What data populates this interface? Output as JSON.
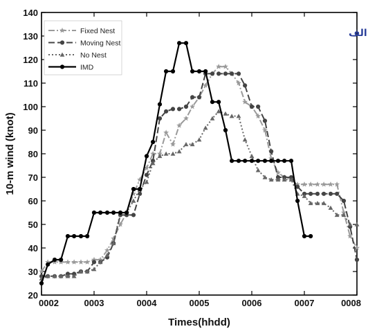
{
  "chart_data": {
    "type": "line",
    "xlabel": "Times(hhdd)",
    "ylabel": "10-m wind (knot)",
    "annotation": "الف",
    "xlim": [
      2,
      8
    ],
    "ylim": [
      20,
      140
    ],
    "xticks": [
      {
        "value": 2,
        "label": "0002"
      },
      {
        "value": 3,
        "label": "0003"
      },
      {
        "value": 4,
        "label": "0004"
      },
      {
        "value": 5,
        "label": "0005"
      },
      {
        "value": 6,
        "label": "0006"
      },
      {
        "value": 7,
        "label": "0007"
      },
      {
        "value": 8,
        "label": "0008"
      }
    ],
    "yticks": [
      20,
      30,
      40,
      50,
      60,
      70,
      80,
      90,
      100,
      110,
      120,
      130,
      140
    ],
    "legend_position": "top-left",
    "series": [
      {
        "name": "Fixed Nest",
        "color": "#9a9a9a",
        "dash": "9,3,2,3",
        "marker": "star",
        "width": 2,
        "points": [
          [
            2.0,
            30
          ],
          [
            2.12,
            34
          ],
          [
            2.25,
            34
          ],
          [
            2.37,
            34
          ],
          [
            2.5,
            34
          ],
          [
            2.62,
            34
          ],
          [
            2.75,
            34
          ],
          [
            2.87,
            34
          ],
          [
            3.0,
            35
          ],
          [
            3.12,
            35
          ],
          [
            3.25,
            39
          ],
          [
            3.37,
            44
          ],
          [
            3.5,
            50
          ],
          [
            3.62,
            55
          ],
          [
            3.75,
            63
          ],
          [
            3.87,
            69
          ],
          [
            4.0,
            74
          ],
          [
            4.12,
            80
          ],
          [
            4.25,
            80
          ],
          [
            4.37,
            89
          ],
          [
            4.5,
            84
          ],
          [
            4.62,
            92
          ],
          [
            4.75,
            95
          ],
          [
            4.87,
            100
          ],
          [
            5.0,
            104
          ],
          [
            5.12,
            109
          ],
          [
            5.25,
            114
          ],
          [
            5.37,
            117
          ],
          [
            5.5,
            117
          ],
          [
            5.62,
            114
          ],
          [
            5.75,
            110
          ],
          [
            5.87,
            102
          ],
          [
            6.0,
            100
          ],
          [
            6.12,
            96
          ],
          [
            6.25,
            90
          ],
          [
            6.37,
            78
          ],
          [
            6.5,
            72
          ],
          [
            6.62,
            70
          ],
          [
            6.75,
            69
          ],
          [
            6.87,
            67
          ],
          [
            7.0,
            67
          ],
          [
            7.12,
            67
          ],
          [
            7.25,
            67
          ],
          [
            7.37,
            67
          ],
          [
            7.5,
            67
          ],
          [
            7.62,
            67
          ],
          [
            7.75,
            55
          ],
          [
            7.87,
            45
          ],
          [
            8.0,
            40
          ]
        ]
      },
      {
        "name": "Moving Nest",
        "color": "#444444",
        "dash": "9,4",
        "marker": "circle",
        "width": 2,
        "points": [
          [
            2.0,
            28
          ],
          [
            2.12,
            28
          ],
          [
            2.25,
            28
          ],
          [
            2.37,
            28
          ],
          [
            2.5,
            29
          ],
          [
            2.62,
            29
          ],
          [
            2.75,
            30
          ],
          [
            2.87,
            30
          ],
          [
            3.0,
            34
          ],
          [
            3.12,
            34
          ],
          [
            3.25,
            36
          ],
          [
            3.37,
            42
          ],
          [
            3.5,
            54
          ],
          [
            3.62,
            54
          ],
          [
            3.75,
            54
          ],
          [
            3.87,
            63
          ],
          [
            4.0,
            71
          ],
          [
            4.12,
            77
          ],
          [
            4.25,
            95
          ],
          [
            4.37,
            98
          ],
          [
            4.5,
            99
          ],
          [
            4.62,
            99
          ],
          [
            4.75,
            100
          ],
          [
            4.87,
            104
          ],
          [
            5.0,
            104
          ],
          [
            5.12,
            114
          ],
          [
            5.25,
            114
          ],
          [
            5.37,
            114
          ],
          [
            5.5,
            114
          ],
          [
            5.62,
            114
          ],
          [
            5.75,
            114
          ],
          [
            5.87,
            109
          ],
          [
            6.0,
            100
          ],
          [
            6.12,
            100
          ],
          [
            6.25,
            94
          ],
          [
            6.37,
            81
          ],
          [
            6.5,
            70
          ],
          [
            6.62,
            70
          ],
          [
            6.75,
            70
          ],
          [
            6.87,
            66
          ],
          [
            7.0,
            63
          ],
          [
            7.12,
            63
          ],
          [
            7.25,
            63
          ],
          [
            7.37,
            63
          ],
          [
            7.5,
            63
          ],
          [
            7.62,
            63
          ],
          [
            7.75,
            60
          ],
          [
            7.87,
            49
          ],
          [
            8.0,
            35
          ]
        ]
      },
      {
        "name": "No Nest",
        "color": "#666666",
        "dash": "2,3",
        "marker": "triangle",
        "width": 2,
        "points": [
          [
            2.0,
            27
          ],
          [
            2.12,
            28
          ],
          [
            2.25,
            28
          ],
          [
            2.37,
            28
          ],
          [
            2.5,
            28
          ],
          [
            2.62,
            28
          ],
          [
            2.75,
            30
          ],
          [
            2.87,
            30
          ],
          [
            3.0,
            31
          ],
          [
            3.12,
            34
          ],
          [
            3.25,
            37
          ],
          [
            3.37,
            42
          ],
          [
            3.5,
            55
          ],
          [
            3.62,
            55
          ],
          [
            3.75,
            60
          ],
          [
            3.87,
            65
          ],
          [
            4.0,
            68
          ],
          [
            4.12,
            76
          ],
          [
            4.25,
            79
          ],
          [
            4.37,
            80
          ],
          [
            4.5,
            80
          ],
          [
            4.62,
            81
          ],
          [
            4.75,
            84
          ],
          [
            4.87,
            84
          ],
          [
            5.0,
            86
          ],
          [
            5.12,
            91
          ],
          [
            5.25,
            95
          ],
          [
            5.37,
            98
          ],
          [
            5.5,
            97
          ],
          [
            5.62,
            96
          ],
          [
            5.75,
            96
          ],
          [
            5.87,
            86
          ],
          [
            6.0,
            79
          ],
          [
            6.12,
            73
          ],
          [
            6.25,
            70
          ],
          [
            6.37,
            69
          ],
          [
            6.5,
            69
          ],
          [
            6.62,
            69
          ],
          [
            6.75,
            69
          ],
          [
            6.87,
            63
          ],
          [
            7.0,
            62
          ],
          [
            7.12,
            59
          ],
          [
            7.25,
            59
          ],
          [
            7.37,
            59
          ],
          [
            7.5,
            57
          ],
          [
            7.62,
            54
          ],
          [
            7.75,
            54
          ],
          [
            7.87,
            50
          ],
          [
            8.0,
            50
          ]
        ]
      },
      {
        "name": "IMD",
        "color": "#000000",
        "dash": "",
        "marker": "circle",
        "width": 2.2,
        "points": [
          [
            2.0,
            25
          ],
          [
            2.12,
            33
          ],
          [
            2.25,
            35
          ],
          [
            2.37,
            35
          ],
          [
            2.5,
            45
          ],
          [
            2.62,
            45
          ],
          [
            2.75,
            45
          ],
          [
            2.87,
            45
          ],
          [
            3.0,
            55
          ],
          [
            3.12,
            55
          ],
          [
            3.25,
            55
          ],
          [
            3.37,
            55
          ],
          [
            3.5,
            55
          ],
          [
            3.62,
            55
          ],
          [
            3.75,
            65
          ],
          [
            3.87,
            65
          ],
          [
            4.0,
            79
          ],
          [
            4.12,
            85
          ],
          [
            4.25,
            101
          ],
          [
            4.37,
            115
          ],
          [
            4.5,
            115
          ],
          [
            4.62,
            127
          ],
          [
            4.75,
            127
          ],
          [
            4.87,
            115
          ],
          [
            5.0,
            115
          ],
          [
            5.12,
            115
          ],
          [
            5.25,
            102
          ],
          [
            5.37,
            102
          ],
          [
            5.5,
            90
          ],
          [
            5.62,
            77
          ],
          [
            5.75,
            77
          ],
          [
            5.87,
            77
          ],
          [
            6.0,
            77
          ],
          [
            6.12,
            77
          ],
          [
            6.25,
            77
          ],
          [
            6.37,
            77
          ],
          [
            6.5,
            77
          ],
          [
            6.62,
            77
          ],
          [
            6.75,
            77
          ],
          [
            6.87,
            60
          ],
          [
            7.0,
            45
          ],
          [
            7.12,
            45
          ]
        ]
      }
    ]
  }
}
